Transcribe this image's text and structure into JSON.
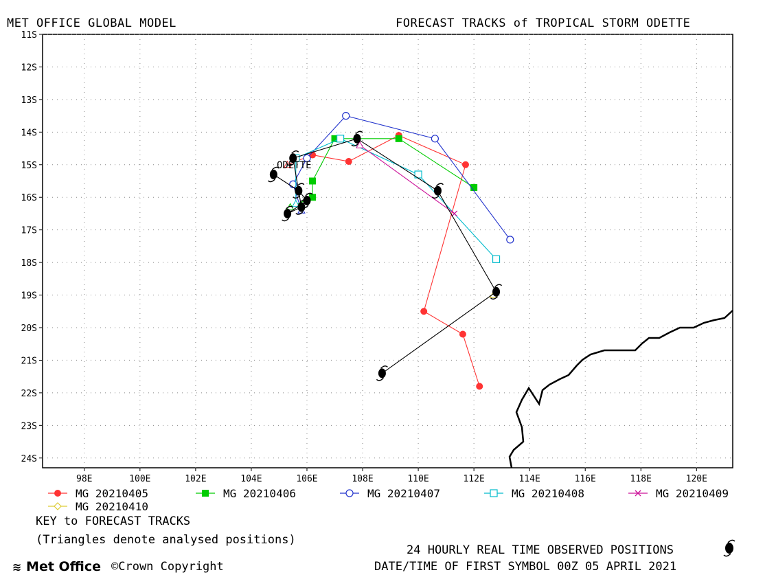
{
  "header": {
    "left_title": "MET OFFICE GLOBAL MODEL",
    "right_title": "FORECAST TRACKS of TROPICAL STORM ODETTE"
  },
  "map": {
    "storm_label": "ODETTE",
    "lon_range": [
      96.5,
      121.3
    ],
    "lat_range": [
      -24.3,
      -11
    ],
    "lon_ticks": [
      "98E",
      "100E",
      "102E",
      "104E",
      "106E",
      "108E",
      "110E",
      "112E",
      "114E",
      "116E",
      "118E",
      "120E"
    ],
    "lat_ticks": [
      "11S",
      "12S",
      "13S",
      "14S",
      "15S",
      "16S",
      "17S",
      "18S",
      "19S",
      "20S",
      "21S",
      "22S",
      "23S",
      "24S"
    ],
    "grid": "dotted"
  },
  "chart_data": {
    "type": "scatter",
    "title": "FORECAST TRACKS of TROPICAL STORM ODETTE",
    "xlabel": "",
    "ylabel": "",
    "xlim": [
      96.5,
      121.3
    ],
    "ylim": [
      -24.3,
      -11
    ],
    "series": [
      {
        "name": "MG 20210405",
        "color": "#ff3333",
        "marker": "filled-circle",
        "points": [
          [
            105.3,
            -15.0
          ],
          [
            106.2,
            -14.7
          ],
          [
            107.5,
            -14.9
          ],
          [
            109.3,
            -14.1
          ],
          [
            111.7,
            -15.0
          ],
          [
            110.2,
            -19.5
          ],
          [
            111.6,
            -20.2
          ],
          [
            112.2,
            -21.8
          ]
        ]
      },
      {
        "name": "MG 20210406",
        "color": "#00cc00",
        "marker": "filled-square",
        "points": [
          [
            105.4,
            -16.3
          ],
          [
            106.2,
            -16.0
          ],
          [
            106.2,
            -15.5
          ],
          [
            107.0,
            -14.2
          ],
          [
            109.3,
            -14.2
          ],
          [
            112.0,
            -15.7
          ]
        ]
      },
      {
        "name": "MG 20210407",
        "color": "#2233cc",
        "marker": "open-circle",
        "points": [
          [
            105.8,
            -16.4
          ],
          [
            105.5,
            -15.6
          ],
          [
            106.0,
            -14.8
          ],
          [
            107.4,
            -13.5
          ],
          [
            110.6,
            -14.2
          ],
          [
            113.3,
            -17.3
          ]
        ]
      },
      {
        "name": "MG 20210408",
        "color": "#00bbcc",
        "marker": "open-square",
        "points": [
          [
            105.6,
            -16.2
          ],
          [
            105.6,
            -14.8
          ],
          [
            107.2,
            -14.2
          ],
          [
            110.0,
            -15.3
          ],
          [
            112.8,
            -17.9
          ]
        ]
      },
      {
        "name": "MG 20210409",
        "color": "#cc1199",
        "marker": "x",
        "points": [
          [
            107.9,
            -14.4
          ],
          [
            111.3,
            -16.5
          ]
        ]
      },
      {
        "name": "MG 20210410",
        "color": "#ddcc33",
        "marker": "diamond",
        "points": [
          [
            112.7,
            -19.0
          ]
        ]
      },
      {
        "name": "Observed",
        "color": "#000000",
        "marker": "cyclone",
        "points": [
          [
            104.8,
            -15.3
          ],
          [
            105.7,
            -15.8
          ],
          [
            106.0,
            -16.1
          ],
          [
            105.3,
            -16.5
          ],
          [
            105.8,
            -16.3
          ],
          [
            105.5,
            -14.8
          ],
          [
            107.8,
            -14.2
          ],
          [
            110.7,
            -15.8
          ],
          [
            112.8,
            -18.9
          ],
          [
            108.7,
            -21.4
          ]
        ]
      }
    ]
  },
  "legend": {
    "items": [
      {
        "label": "MG 20210405",
        "color": "#ff3333",
        "marker": "filled-circle"
      },
      {
        "label": "MG 20210406",
        "color": "#00cc00",
        "marker": "filled-square"
      },
      {
        "label": "MG 20210407",
        "color": "#2233cc",
        "marker": "open-circle"
      },
      {
        "label": "MG 20210408",
        "color": "#00bbcc",
        "marker": "open-square"
      },
      {
        "label": "MG 20210409",
        "color": "#cc1199",
        "marker": "x"
      },
      {
        "label": "MG 20210410",
        "color": "#ddcc33",
        "marker": "diamond"
      }
    ]
  },
  "key": {
    "title": "KEY to FORECAST TRACKS",
    "note": "(Triangles denote analysed positions)"
  },
  "footer": {
    "observed_label": "24 HOURLY REAL TIME OBSERVED POSITIONS",
    "date_label": "DATE/TIME OF FIRST SYMBOL 00Z 05 APRIL 2021",
    "logo_text": "Met Office",
    "copyright": "©Crown Copyright"
  }
}
